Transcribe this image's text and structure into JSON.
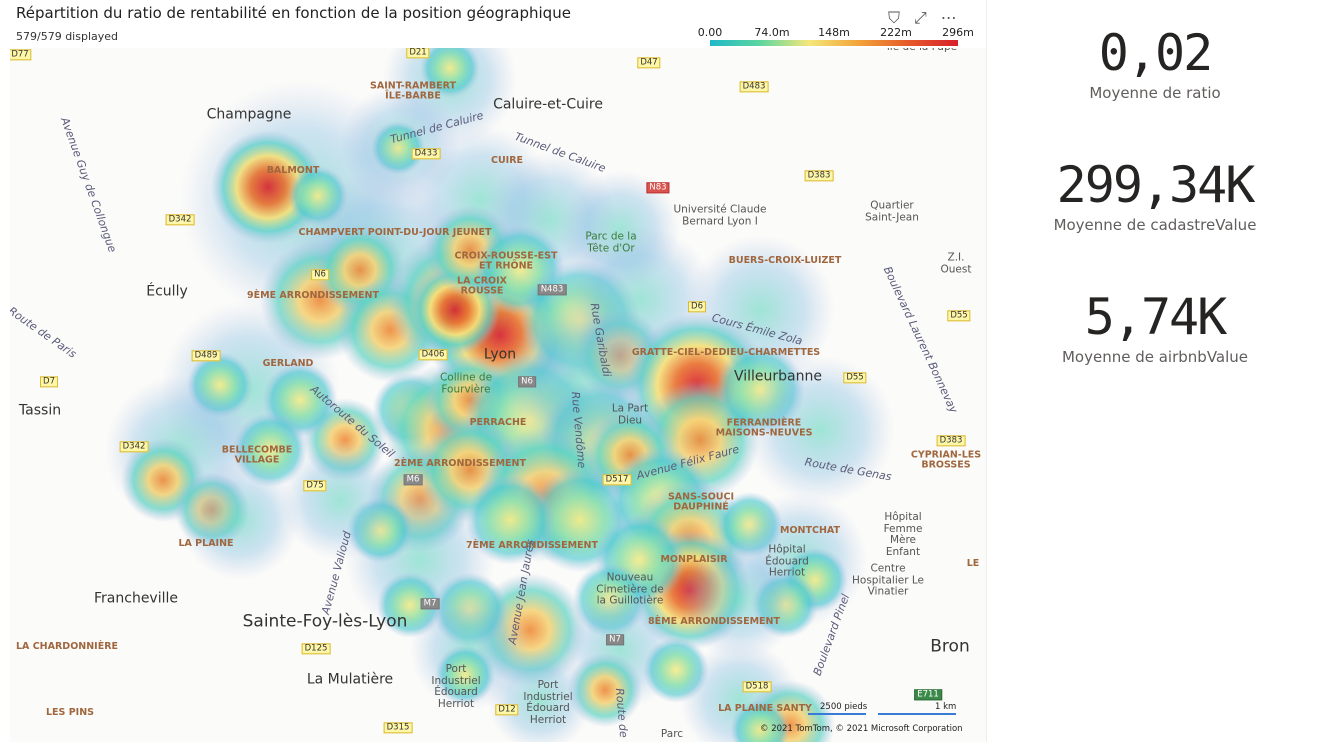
{
  "visual": {
    "title": "Répartition du ratio de rentabilité en fonction de la position géographique",
    "subtitle": "579/579 displayed",
    "legend": [
      "0.00",
      "74.0m",
      "148m",
      "222m",
      "296m"
    ],
    "scale": [
      "2500 pieds",
      "1 km"
    ],
    "attribution": "© 2021 TomTom, © 2021 Microsoft Corporation"
  },
  "map_labels": [
    "Caluire-et-Cuire",
    "Champagne",
    "Écully",
    "Lyon",
    "Villeurbanne",
    "Tassin",
    "Francheville",
    "Sainte-Foy-lès-Lyon",
    "La Mulatière",
    "Bron",
    "SAINT-RAMBERT ÎLE-BARBE",
    "CUIRE",
    "BALMONT",
    "CHAMPVERT POINT-DU-JOUR JEUNET",
    "CROIX-ROUSSE-EST ET RHÔNE",
    "LA CROIX ROUSSE",
    "9ÈME ARRONDISSEMENT",
    "GERLAND",
    "BUERS-CROIX-LUIZET",
    "GRATTE-CIEL-DEDIEU-CHARMETTES",
    "FERRANDIÈRE MAISONS-NEUVES",
    "PERRACHE",
    "BELLECOMBE VILLAGE",
    "2ÈME ARRONDISSEMENT",
    "CYPRIAN-LES BROSSES",
    "SANS-SOUCI DAUPHINÉ",
    "MONTCHAT",
    "LA PLAINE",
    "7ÈME ARRONDISSEMENT",
    "MONPLAISIR",
    "8ÈME ARRONDISSEMENT",
    "LA CHARDONNIÈRE",
    "LES PINS",
    "LA PLAINE SANTY",
    "LE",
    "Université Claude Bernard Lyon I",
    "Quartier Saint-Jean",
    "Z.I. Ouest",
    "Parc de la Tête d'Or",
    "Colline de Fourvière",
    "La Part Dieu",
    "Hôpital Femme Mère Enfant",
    "Hôpital Édouard Herriot",
    "Centre Hospitalier Le Vinatier",
    "Nouveau Cimetière de la Guillotière",
    "Port Industriel Édouard Herriot",
    "Port Industriel Édouard Herriot",
    "Parc",
    "île de la Pape",
    "Tunnel de Caluire",
    "Tunnel de Caluire",
    "Avenue Guy de Collongue",
    "Route de Paris",
    "Autoroute du Soleil",
    "Rue Garibaldi",
    "Rue Vendôme",
    "Cours Émile Zola",
    "Avenue Félix Faure",
    "Route de Genas",
    "Boulevard Laurent Bonnevay",
    "Avenue Valioud",
    "Avenue Jean Jaurès",
    "Boulevard Pinel",
    "Route de",
    "D77",
    "D21",
    "D47",
    "D483",
    "D433",
    "N83",
    "D383",
    "D342",
    "N6",
    "N483",
    "D6",
    "D55",
    "D489",
    "D406",
    "N6",
    "D7",
    "D55",
    "D342",
    "D383",
    "M6",
    "D75",
    "D517",
    "M7",
    "N7",
    "D125",
    "D518",
    "E711",
    "D12",
    "D315"
  ],
  "cards": [
    {
      "value": "0,02",
      "label": "Moyenne de ratio"
    },
    {
      "value": "299,34K",
      "label": "Moyenne de cadastreValue"
    },
    {
      "value": "5,74K",
      "label": "Moyenne de airbnbValue"
    }
  ]
}
